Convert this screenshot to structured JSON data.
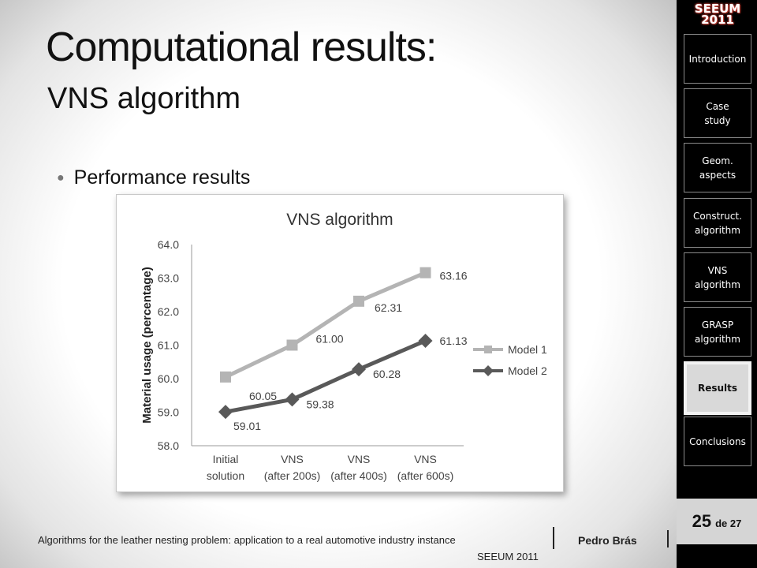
{
  "slide": {
    "title": "Computational results:",
    "subtitle": "VNS algorithm",
    "bullet": "Performance results"
  },
  "sidebar": {
    "logo_line1": "SEEUM",
    "logo_line2": "2011",
    "items": [
      {
        "label": "Introduction",
        "active": false
      },
      {
        "label": "Case study",
        "active": false
      },
      {
        "label": "Geom. aspects",
        "active": false
      },
      {
        "label": "Construct. algorithm",
        "active": false
      },
      {
        "label": "VNS algorithm",
        "active": false
      },
      {
        "label": "GRASP algorithm",
        "active": false
      },
      {
        "label": "Results",
        "active": true
      },
      {
        "label": "Conclusions",
        "active": false
      }
    ],
    "page_current": "25",
    "page_of": "de 27"
  },
  "footer": {
    "presentation_title": "Algorithms for the leather nesting problem: application to a real automotive industry instance",
    "author": "Pedro Brás",
    "conference": "SEEUM 2011"
  },
  "chart_data": {
    "type": "line",
    "title": "VNS algorithm",
    "xlabel": "",
    "ylabel": "Material usage (percentage)",
    "categories": [
      [
        "Initial",
        "solution"
      ],
      [
        "VNS",
        "(after 200s)"
      ],
      [
        "VNS",
        "(after 400s)"
      ],
      [
        "VNS",
        "(after 600s)"
      ]
    ],
    "ylim": [
      58.0,
      64.0
    ],
    "yticks": [
      "58.0",
      "59.0",
      "60.0",
      "61.0",
      "62.0",
      "63.0",
      "64.0"
    ],
    "grid": false,
    "legend_position": "right",
    "series": [
      {
        "name": "Model 1",
        "values": [
          60.05,
          61.0,
          62.31,
          63.16
        ],
        "labels": [
          "60.05",
          "61.00",
          "62.31",
          "63.16"
        ],
        "color": "#b4b4b4",
        "marker": "square"
      },
      {
        "name": "Model 2",
        "values": [
          59.01,
          59.38,
          60.28,
          61.13
        ],
        "labels": [
          "59.01",
          "59.38",
          "60.28",
          "61.13"
        ],
        "color": "#595959",
        "marker": "diamond"
      }
    ]
  }
}
